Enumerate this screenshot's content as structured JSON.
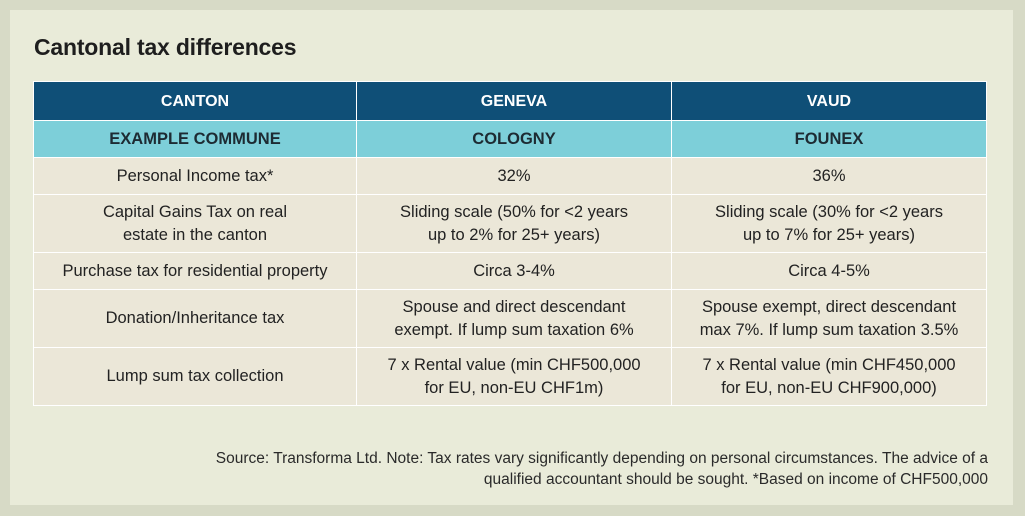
{
  "title": "Cantonal tax differences",
  "header": [
    "CANTON",
    "GENEVA",
    "VAUD"
  ],
  "subheader": [
    "EXAMPLE COMMUNE",
    "COLOGNY",
    "FOUNEX"
  ],
  "rows": [
    {
      "label": "Personal Income tax*",
      "geneva": "32%",
      "vaud": "36%"
    },
    {
      "label": [
        "Capital Gains Tax on real",
        "estate in the canton"
      ],
      "geneva": [
        "Sliding scale (50% for <2 years",
        "up to 2% for 25+ years)"
      ],
      "vaud": [
        "Sliding scale (30% for <2 years",
        "up to 7% for 25+ years)"
      ]
    },
    {
      "label": "Purchase tax for residential property",
      "geneva": "Circa 3-4%",
      "vaud": "Circa 4-5%"
    },
    {
      "label": "Donation/Inheritance tax",
      "geneva": [
        "Spouse and direct descendant",
        "exempt. If lump sum taxation 6%"
      ],
      "vaud": [
        "Spouse exempt, direct descendant",
        "max 7%. If lump sum taxation 3.5%"
      ]
    },
    {
      "label": "Lump sum tax collection",
      "geneva": [
        "7 x Rental value (min CHF500,000",
        "for EU, non-EU CHF1m)"
      ],
      "vaud": [
        "7 x Rental value (min CHF450,000",
        "for EU, non-EU CHF900,000)"
      ]
    }
  ],
  "source": [
    "Source: Transforma Ltd. Note: Tax rates vary significantly depending on personal circumstances. The advice of a",
    "qualified accountant should be sought. *Based on income of CHF500,000"
  ]
}
